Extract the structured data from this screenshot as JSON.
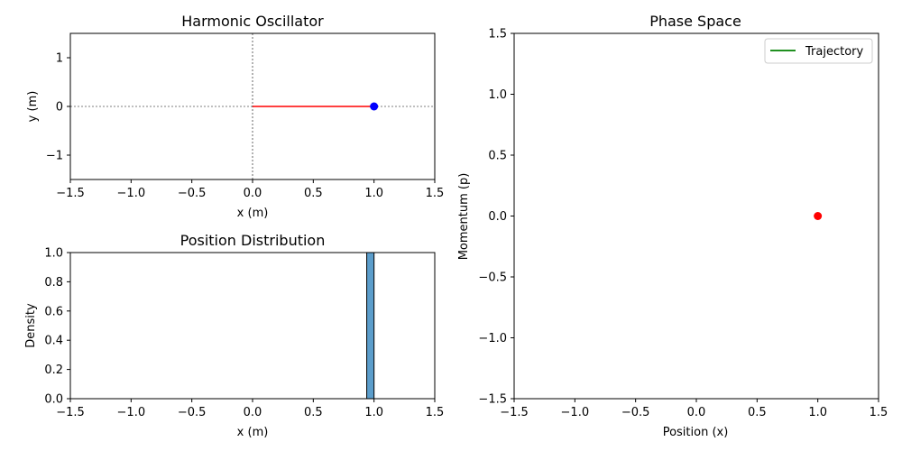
{
  "chart_data": [
    {
      "id": "oscillator",
      "type": "line",
      "title": "Harmonic Oscillator",
      "xlabel": "x (m)",
      "ylabel": "y (m)",
      "xlim": [
        -1.5,
        1.5
      ],
      "ylim": [
        -1.5,
        1.5
      ],
      "xticks": [
        -1.5,
        -1.0,
        -0.5,
        0.0,
        0.5,
        1.0,
        1.5
      ],
      "xtick_labels": [
        "−1.5",
        "−1.0",
        "−0.5",
        "0.0",
        "0.5",
        "1.0",
        "1.5"
      ],
      "yticks": [
        -1,
        0,
        1
      ],
      "ytick_labels": [
        "−1",
        "0",
        "1"
      ],
      "grid": false,
      "reference_lines": [
        {
          "orientation": "horizontal",
          "value": 0,
          "style": "dashed",
          "color": "#000000"
        },
        {
          "orientation": "vertical",
          "value": 0,
          "style": "dashed",
          "color": "#000000"
        }
      ],
      "spring": {
        "x": [
          0.0,
          1.0
        ],
        "y": [
          0.0,
          0.0
        ],
        "color": "#ff0000"
      },
      "mass": {
        "x": 1.0,
        "y": 0.0,
        "color": "#0000ff"
      }
    },
    {
      "id": "distribution",
      "type": "bar",
      "title": "Position Distribution",
      "xlabel": "x (m)",
      "ylabel": "Density",
      "xlim": [
        -1.5,
        1.5
      ],
      "ylim": [
        0,
        1
      ],
      "xticks": [
        -1.5,
        -1.0,
        -0.5,
        0.0,
        0.5,
        1.0,
        1.5
      ],
      "xtick_labels": [
        "−1.5",
        "−1.0",
        "−0.5",
        "0.0",
        "0.5",
        "1.0",
        "1.5"
      ],
      "yticks": [
        0.0,
        0.2,
        0.4,
        0.6,
        0.8,
        1.0
      ],
      "ytick_labels": [
        "0.0",
        "0.2",
        "0.4",
        "0.6",
        "0.8",
        "1.0"
      ],
      "bins": [
        {
          "x0": 0.94,
          "x1": 1.0,
          "value": 1.0
        }
      ],
      "bar_color": "#5b9dcb",
      "edge_color": "#000000"
    },
    {
      "id": "phase",
      "type": "scatter",
      "title": "Phase Space",
      "xlabel": "Position (x)",
      "ylabel": "Momentum (p)",
      "xlim": [
        -1.5,
        1.5
      ],
      "ylim": [
        -1.5,
        1.5
      ],
      "xticks": [
        -1.5,
        -1.0,
        -0.5,
        0.0,
        0.5,
        1.0,
        1.5
      ],
      "xtick_labels": [
        "−1.5",
        "−1.0",
        "−0.5",
        "0.0",
        "0.5",
        "1.0",
        "1.5"
      ],
      "yticks": [
        -1.5,
        -1.0,
        -0.5,
        0.0,
        0.5,
        1.0,
        1.5
      ],
      "ytick_labels": [
        "−1.5",
        "−1.0",
        "−0.5",
        "0.0",
        "0.5",
        "1.0",
        "1.5"
      ],
      "series": [
        {
          "name": "Trajectory",
          "type": "line",
          "x": [],
          "y": [],
          "color": "#008000"
        }
      ],
      "current_point": {
        "x": 1.0,
        "y": 0.0,
        "color": "#ff0000"
      },
      "legend": {
        "position": "top-right",
        "entries": [
          "Trajectory"
        ]
      }
    }
  ]
}
